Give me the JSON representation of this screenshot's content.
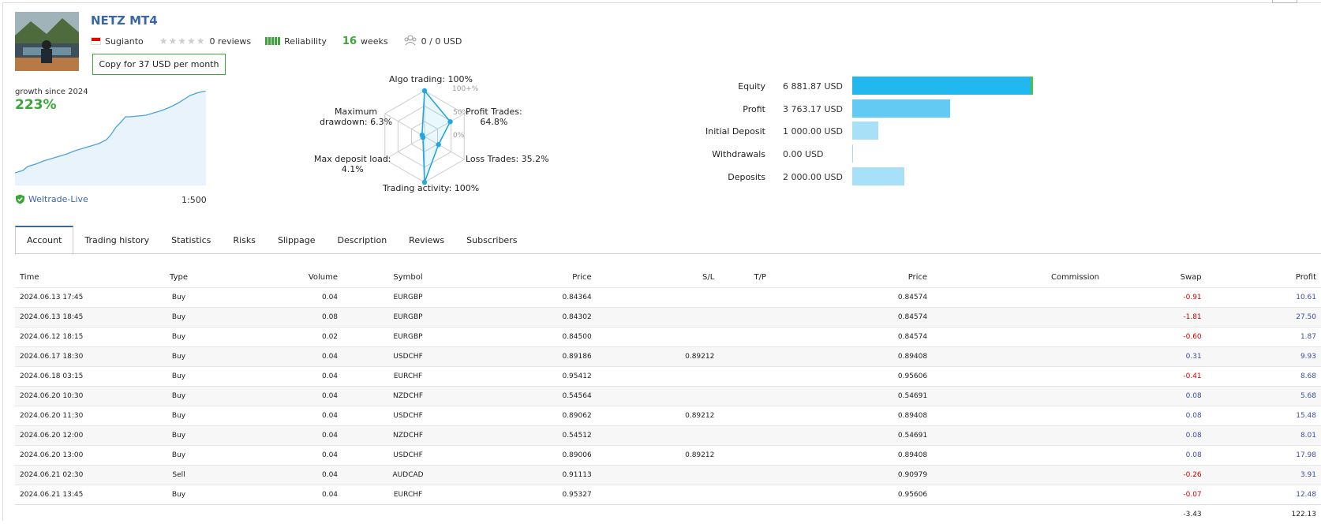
{
  "signal": {
    "title": "NETZ MT4",
    "author": "Sugianto",
    "reviews": "0 reviews",
    "reliability_label": "Reliability",
    "weeks_value": "16",
    "weeks_label": "weeks",
    "subscribers": "0 / 0 USD",
    "copy_button": "Copy for 37 USD per month"
  },
  "growth": {
    "label": "growth since 2024",
    "value": "223%",
    "broker": "Weltrade-Live",
    "leverage": "1:500"
  },
  "radar": {
    "algo_trading": "Algo trading: 100%",
    "profit_trades": "Profit Trades:\n64.8%",
    "loss_trades": "Loss Trades: 35.2%",
    "trading_activity": "Trading activity: 100%",
    "max_deposit_load": "Max deposit load:\n4.1%",
    "max_drawdown": "Maximum\ndrawdown: 6.3%",
    "scale_100": "100+%",
    "scale_50": "50%",
    "scale_0": "0%",
    "values": {
      "algo": 1.0,
      "profit": 0.648,
      "loss": 0.352,
      "activity": 1.0,
      "deposit_load": 0.041,
      "drawdown": 0.063
    }
  },
  "balance": {
    "rows": [
      {
        "label": "Equity",
        "value": "6 881.87 USD",
        "amount": 6881.87,
        "color": "#23b7ef"
      },
      {
        "label": "Profit",
        "value": "3 763.17 USD",
        "amount": 3763.17,
        "color": "#63cbf3"
      },
      {
        "label": "Initial Deposit",
        "value": "1 000.00 USD",
        "amount": 1000.0,
        "color": "#a8e0f7"
      },
      {
        "label": "Withdrawals",
        "value": "0.00 USD",
        "amount": 0,
        "color": "#cfeefb"
      },
      {
        "label": "Deposits",
        "value": "2 000.00 USD",
        "amount": 2000.0,
        "color": "#a8e0f7"
      }
    ]
  },
  "tabs": [
    "Account",
    "Trading history",
    "Statistics",
    "Risks",
    "Slippage",
    "Description",
    "Reviews",
    "Subscribers"
  ],
  "table": {
    "headers": [
      "Time",
      "Type",
      "Volume",
      "Symbol",
      "Price",
      "S/L",
      "T/P",
      "Price",
      "Commission",
      "Swap",
      "Profit"
    ],
    "rows": [
      [
        "2024.06.13 17:45",
        "Buy",
        "0.04",
        "EURGBP",
        "0.84364",
        "",
        "",
        "0.84574",
        "",
        "-0.91",
        "10.61"
      ],
      [
        "2024.06.13 18:45",
        "Buy",
        "0.08",
        "EURGBP",
        "0.84302",
        "",
        "",
        "0.84574",
        "",
        "-1.81",
        "27.50"
      ],
      [
        "2024.06.12 18:15",
        "Buy",
        "0.02",
        "EURGBP",
        "0.84500",
        "",
        "",
        "0.84574",
        "",
        "-0.60",
        "1.87"
      ],
      [
        "2024.06.17 18:30",
        "Buy",
        "0.04",
        "USDCHF",
        "0.89186",
        "0.89212",
        "",
        "0.89408",
        "",
        "0.31",
        "9.93"
      ],
      [
        "2024.06.18 03:15",
        "Buy",
        "0.04",
        "EURCHF",
        "0.95412",
        "",
        "",
        "0.95606",
        "",
        "-0.41",
        "8.68"
      ],
      [
        "2024.06.20 10:30",
        "Buy",
        "0.04",
        "NZDCHF",
        "0.54564",
        "",
        "",
        "0.54691",
        "",
        "0.08",
        "5.68"
      ],
      [
        "2024.06.20 11:30",
        "Buy",
        "0.04",
        "USDCHF",
        "0.89062",
        "0.89212",
        "",
        "0.89408",
        "",
        "0.08",
        "15.48"
      ],
      [
        "2024.06.20 12:00",
        "Buy",
        "0.04",
        "NZDCHF",
        "0.54512",
        "",
        "",
        "0.54691",
        "",
        "0.08",
        "8.01"
      ],
      [
        "2024.06.20 13:00",
        "Buy",
        "0.04",
        "USDCHF",
        "0.89006",
        "0.89212",
        "",
        "0.89408",
        "",
        "0.08",
        "17.98"
      ],
      [
        "2024.06.21 02:30",
        "Sell",
        "0.04",
        "AUDCAD",
        "0.91113",
        "",
        "",
        "0.90979",
        "",
        "-0.26",
        "3.91"
      ],
      [
        "2024.06.21 13:45",
        "Buy",
        "0.04",
        "EURCHF",
        "0.95327",
        "",
        "",
        "0.95606",
        "",
        "-0.07",
        "12.48"
      ]
    ],
    "total_swap": "-3.43",
    "total_profit": "122.13"
  },
  "colors": {
    "accent": "#3a67a8",
    "green": "#3aa63a",
    "negative": "#c00000",
    "positive": "#3a4ea8"
  }
}
